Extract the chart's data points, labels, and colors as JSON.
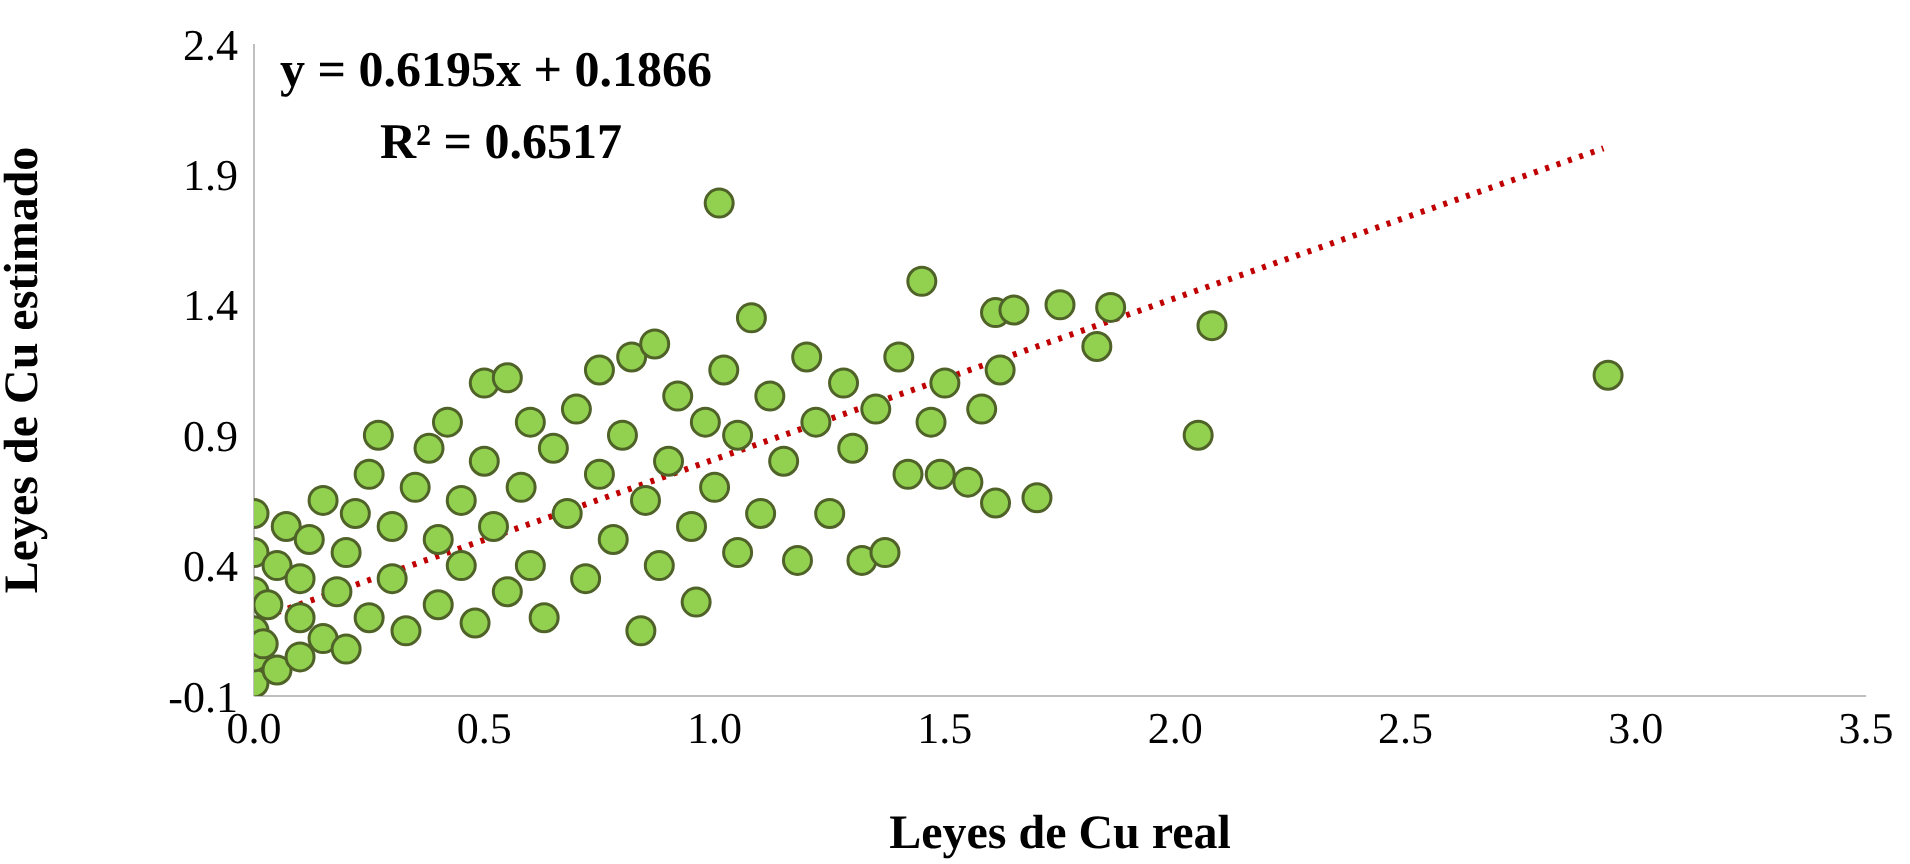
{
  "chart_data": {
    "type": "scatter",
    "xlabel": "Leyes de Cu real",
    "ylabel": "Leyes de Cu estimado",
    "annotations": [
      "y = 0.6195x + 0.1866",
      "R² = 0.6517"
    ],
    "xlim": [
      0,
      3.5
    ],
    "xticks": [
      {
        "value": 0,
        "label": "0.0"
      },
      0.5,
      {
        "value": 1,
        "label": "1.0"
      },
      1.5,
      {
        "value": 2,
        "label": "2.0"
      },
      2.5,
      {
        "value": 3,
        "label": "3.0"
      },
      3.5
    ],
    "ylim": [
      -0.1,
      2.4
    ],
    "yticks": [
      -0.1,
      0.4,
      0.9,
      1.4,
      1.9,
      2.4
    ],
    "series": [
      {
        "color": "#92d050",
        "marker": "circle",
        "x": [
          0,
          0,
          0,
          0,
          0,
          0,
          0.02,
          0.03,
          0.05,
          0.05,
          0.07,
          0.1,
          0.1,
          0.1,
          0.12,
          0.15,
          0.15,
          0.18,
          0.2,
          0.2,
          0.22,
          0.25,
          0.25,
          0.27,
          0.3,
          0.3,
          0.33,
          0.35,
          0.38,
          0.4,
          0.4,
          0.42,
          0.45,
          0.45,
          0.48,
          0.5,
          0.5,
          0.52,
          0.55,
          0.55,
          0.58,
          0.6,
          0.6,
          0.63,
          0.65,
          0.68,
          0.7,
          0.72,
          0.75,
          0.75,
          0.78,
          0.8,
          0.82,
          0.84,
          0.85,
          0.87,
          0.88,
          0.9,
          0.92,
          0.95,
          0.96,
          0.98,
          1.0,
          1.01,
          1.02,
          1.05,
          1.05,
          1.08,
          1.1,
          1.12,
          1.15,
          1.18,
          1.2,
          1.22,
          1.25,
          1.28,
          1.3,
          1.32,
          1.35,
          1.37,
          1.4,
          1.42,
          1.45,
          1.47,
          1.49,
          1.5,
          1.55,
          1.58,
          1.61,
          1.61,
          1.62,
          1.65,
          1.7,
          1.75,
          1.83,
          1.86,
          2.05,
          2.08,
          2.94
        ],
        "values": [
          -0.05,
          0.05,
          0.15,
          0.3,
          0.45,
          0.6,
          0.1,
          0.25,
          0.0,
          0.4,
          0.55,
          0.05,
          0.2,
          0.35,
          0.5,
          0.12,
          0.65,
          0.3,
          0.08,
          0.45,
          0.6,
          0.2,
          0.75,
          0.9,
          0.35,
          0.55,
          0.15,
          0.7,
          0.85,
          0.25,
          0.5,
          0.95,
          0.4,
          0.65,
          0.18,
          0.8,
          1.1,
          0.55,
          0.3,
          1.12,
          0.7,
          0.95,
          0.4,
          0.2,
          0.85,
          0.6,
          1.0,
          0.35,
          0.75,
          1.15,
          0.5,
          0.9,
          1.2,
          0.15,
          0.65,
          1.25,
          0.4,
          0.8,
          1.05,
          0.55,
          0.26,
          0.95,
          0.7,
          1.79,
          1.15,
          0.45,
          0.9,
          1.35,
          0.6,
          1.05,
          0.8,
          0.42,
          1.2,
          0.95,
          0.6,
          1.1,
          0.85,
          0.42,
          1.0,
          0.45,
          1.2,
          0.75,
          1.49,
          0.95,
          0.75,
          1.1,
          0.72,
          1.0,
          0.64,
          1.37,
          1.15,
          1.38,
          0.66,
          1.4,
          1.24,
          1.39,
          0.9,
          1.32,
          1.13
        ]
      },
      {
        "type": "line",
        "color": "#c00000",
        "line_style": "dotted",
        "marker": "none",
        "x": [
          0,
          2.93
        ],
        "values": [
          0.19,
          2.0
        ]
      }
    ]
  }
}
